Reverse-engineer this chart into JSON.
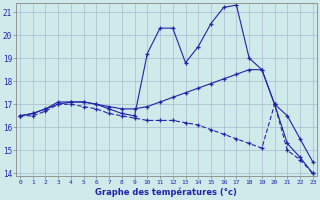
{
  "xlabel": "Graphe des températures (°c)",
  "bg_color": "#ceeaea",
  "line_color": "#2222aa",
  "grid_color": "#aabbcc",
  "xmin": 0,
  "xmax": 23,
  "ymin": 14,
  "ymax": 21,
  "series1_x": [
    0,
    1,
    2,
    3,
    4,
    5,
    6,
    7,
    8,
    9,
    10,
    11,
    12,
    13,
    14,
    15,
    16,
    17,
    18,
    19,
    20,
    21,
    22,
    23
  ],
  "series1_y": [
    16.5,
    16.6,
    16.8,
    17.1,
    17.1,
    17.1,
    17.0,
    16.8,
    16.6,
    16.5,
    19.2,
    20.3,
    20.3,
    18.8,
    19.5,
    20.5,
    21.2,
    21.3,
    19.0,
    18.5,
    17.0,
    15.3,
    14.7,
    14.0
  ],
  "series2_x": [
    0,
    1,
    2,
    3,
    4,
    5,
    6,
    7,
    8,
    9,
    10,
    11,
    12,
    13,
    14,
    15,
    16,
    17,
    18,
    19,
    20,
    21,
    22,
    23
  ],
  "series2_y": [
    16.5,
    16.6,
    16.8,
    17.0,
    17.1,
    17.1,
    17.0,
    16.9,
    16.8,
    16.8,
    16.9,
    17.1,
    17.3,
    17.5,
    17.7,
    17.9,
    18.1,
    18.3,
    18.5,
    18.5,
    17.0,
    16.5,
    15.5,
    14.5
  ],
  "series3_x": [
    0,
    1,
    2,
    3,
    4,
    5,
    6,
    7,
    8,
    9,
    10,
    11,
    12,
    13,
    14,
    15,
    16,
    17,
    18,
    19,
    20,
    21,
    22,
    23
  ],
  "series3_y": [
    16.5,
    16.5,
    16.7,
    17.0,
    17.0,
    16.9,
    16.8,
    16.6,
    16.5,
    16.4,
    16.3,
    16.3,
    16.3,
    16.2,
    16.1,
    15.9,
    15.7,
    15.5,
    15.3,
    15.1,
    17.0,
    15.0,
    14.6,
    14.0
  ]
}
